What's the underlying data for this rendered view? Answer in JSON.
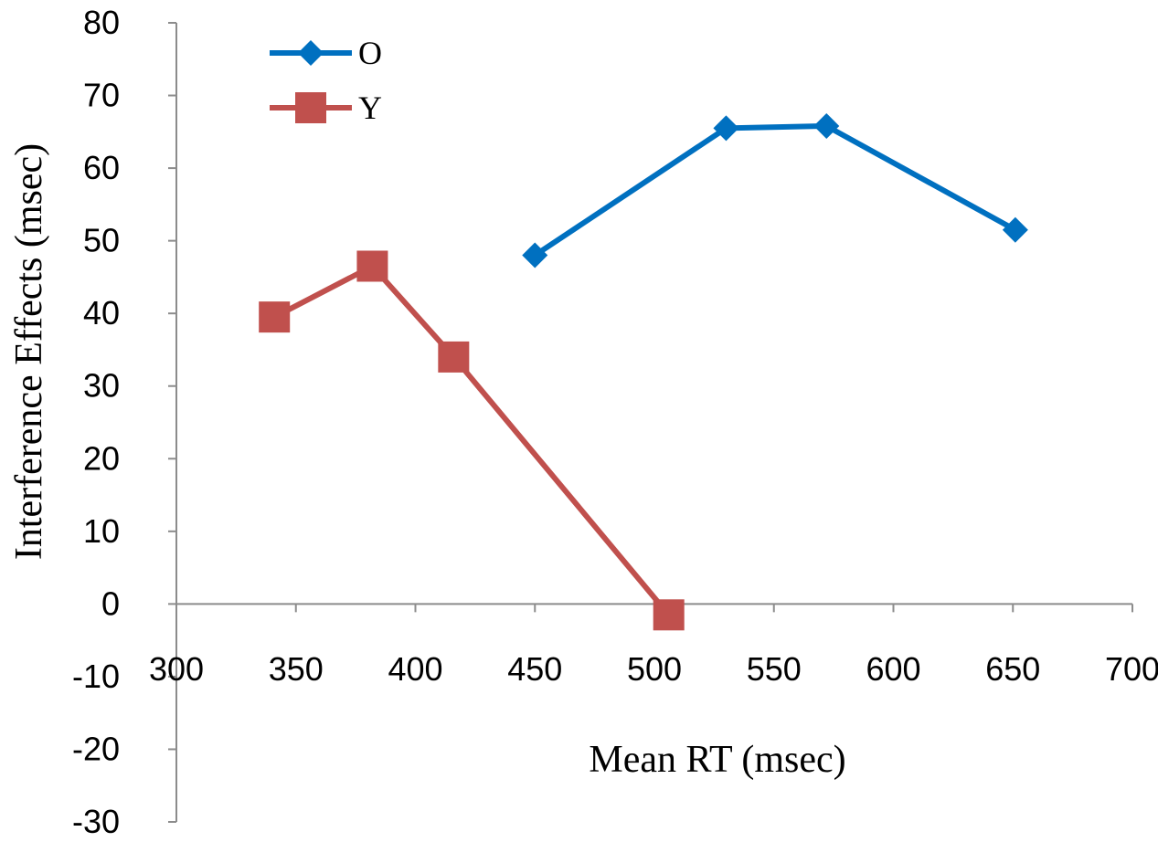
{
  "chart_data": {
    "type": "line",
    "title": "",
    "xlabel": "Mean RT (msec)",
    "ylabel": "Interference Effects (msec)",
    "xlim": [
      300,
      700
    ],
    "ylim": [
      -30,
      80
    ],
    "xticks": [
      300,
      350,
      400,
      450,
      500,
      550,
      600,
      650,
      700
    ],
    "yticks": [
      -30,
      -20,
      -10,
      0,
      10,
      20,
      30,
      40,
      50,
      60,
      70,
      80
    ],
    "xtick_labels": [
      "300",
      "350",
      "400",
      "450",
      "500",
      "550",
      "600",
      "650",
      "700"
    ],
    "ytick_labels": [
      "-30",
      "-20",
      "-10",
      "0",
      "10",
      "20",
      "30",
      "40",
      "50",
      "60",
      "70",
      "80"
    ],
    "legend_position": "top-left",
    "series": [
      {
        "name": "O",
        "marker": "diamond",
        "color": "#0070C0",
        "x": [
          450,
          530,
          572,
          651
        ],
        "y": [
          48,
          65.5,
          65.8,
          51.5
        ]
      },
      {
        "name": "Y",
        "marker": "square",
        "color": "#C0504D",
        "x": [
          341,
          382,
          416,
          506
        ],
        "y": [
          39.5,
          46.5,
          34,
          -1.5
        ]
      }
    ]
  }
}
